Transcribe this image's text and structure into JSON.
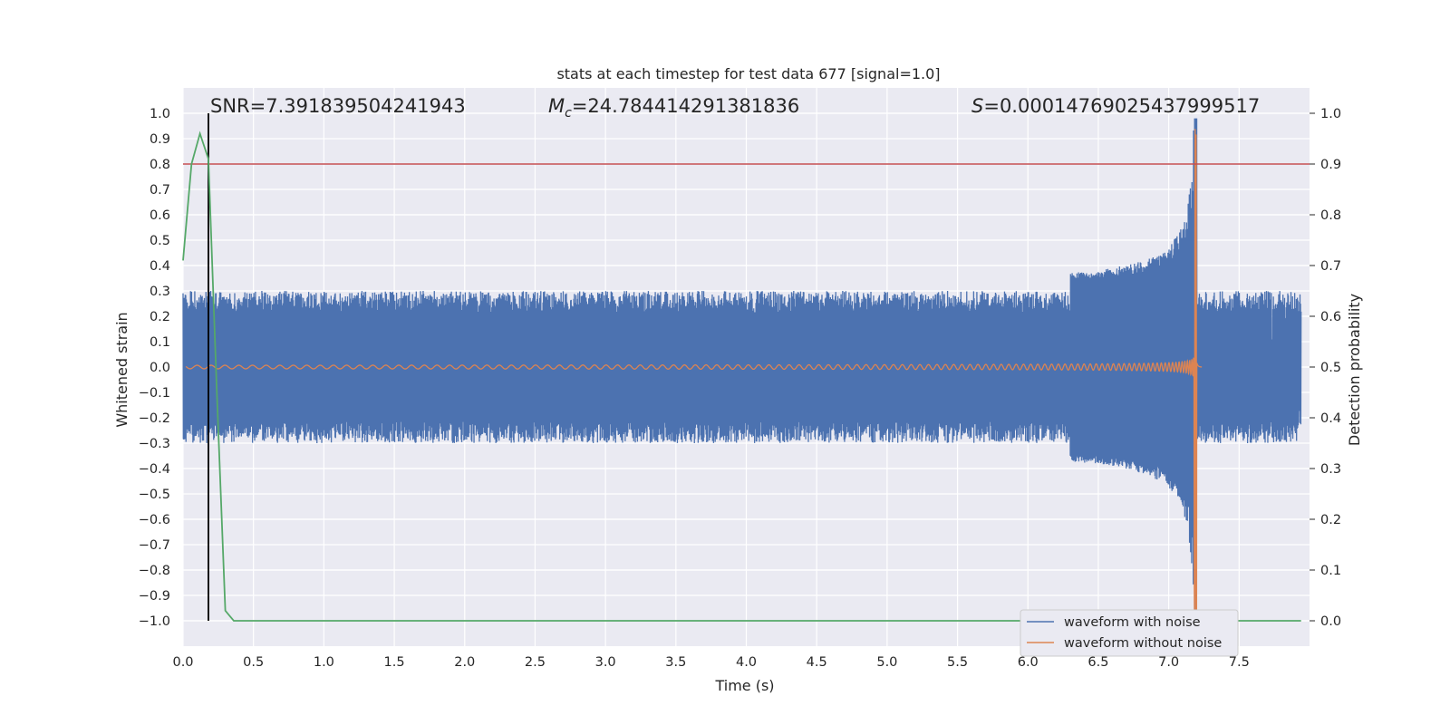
{
  "chart_data": {
    "type": "line",
    "title": "stats at each timestep for test data 677 [signal=1.0]",
    "xlabel": "Time (s)",
    "ylabel": "Whitened strain",
    "ylabel_right": "Detection probability",
    "xlim": [
      0.0,
      8.0
    ],
    "ylim": [
      -1.1,
      1.1
    ],
    "ylim_right": [
      -0.05,
      1.05
    ],
    "x_ticks": [
      "0.0",
      "0.5",
      "1.0",
      "1.5",
      "2.0",
      "2.5",
      "3.0",
      "3.5",
      "4.0",
      "4.5",
      "5.0",
      "5.5",
      "6.0",
      "6.5",
      "7.0",
      "7.5"
    ],
    "y_ticks": [
      "1.0",
      "0.9",
      "0.8",
      "0.7",
      "0.6",
      "0.5",
      "0.4",
      "0.3",
      "0.2",
      "0.1",
      "0.0",
      "−0.1",
      "−0.2",
      "−0.3",
      "−0.4",
      "−0.5",
      "−0.6",
      "−0.7",
      "−0.8",
      "−0.9",
      "−1.0"
    ],
    "y_ticks_right": [
      "1.0",
      "0.9",
      "0.8",
      "0.7",
      "0.6",
      "0.5",
      "0.4",
      "0.3",
      "0.2",
      "0.1",
      "0.0"
    ],
    "annotations": {
      "snr": "SNR=7.391839504241943",
      "mc_symbol": "M",
      "mc_sub": "c",
      "mc_value": "=24.784414291381836",
      "s_symbol": "S",
      "s_value": "=0.00014769025437999517"
    },
    "legend": [
      "waveform with noise",
      "waveform without noise"
    ],
    "colors": {
      "noise": "#4c72b0",
      "signal": "#dd8452",
      "probability": "#55a868",
      "threshold": "#c44e52",
      "marker": "#000000",
      "background": "#eaeaf2",
      "grid": "#ffffff"
    },
    "threshold": 0.9,
    "marker_time": 0.18,
    "merger_time": 7.2,
    "noise_amplitude": 0.3,
    "signal_peak": 0.97,
    "probability_series": {
      "x": [
        0.0,
        0.06,
        0.12,
        0.18,
        0.24,
        0.3,
        0.36,
        0.42,
        0.5,
        1.0,
        2.0,
        3.0,
        4.0,
        5.0,
        6.0,
        7.0,
        7.94
      ],
      "y": [
        0.71,
        0.9,
        0.96,
        0.91,
        0.45,
        0.02,
        0.0,
        0.0,
        0.0,
        0.0,
        0.0,
        0.0,
        0.0,
        0.0,
        0.0,
        0.0,
        0.0
      ]
    }
  }
}
